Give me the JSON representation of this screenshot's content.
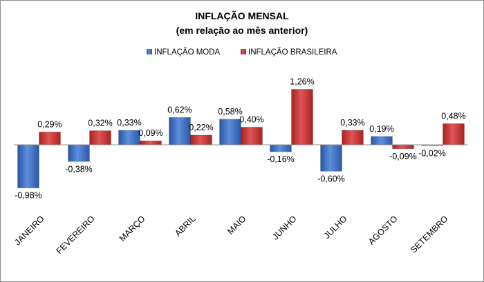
{
  "chart_data": {
    "type": "bar",
    "title": "INFLAÇÃO MENSAL",
    "subtitle": "(em relação ao mês anterior)",
    "legend_position": "top",
    "grid": false,
    "categories": [
      "JANEIRO",
      "FEVEREIRO",
      "MARÇO",
      "ABRIL",
      "MAIO",
      "JUNHO",
      "JULHO",
      "AGOSTO",
      "SETEMBRO"
    ],
    "ylim": [
      -1.2,
      1.5
    ],
    "series": [
      {
        "name": "INFLAÇÃO MODA",
        "color": "#3d6fc2",
        "values": [
          -0.98,
          -0.38,
          0.33,
          0.62,
          0.58,
          -0.16,
          -0.6,
          0.19,
          -0.02
        ],
        "labels": [
          "-0,98%",
          "-0,38%",
          "0,33%",
          "0,62%",
          "0,58%",
          "-0,16%",
          "-0,60%",
          "0,19%",
          "-0,02%"
        ]
      },
      {
        "name": "INFLAÇÃO BRASILEIRA",
        "color": "#c42e2e",
        "values": [
          0.29,
          0.32,
          0.09,
          0.22,
          0.4,
          1.26,
          0.33,
          -0.09,
          0.48
        ],
        "labels": [
          "0,29%",
          "0,32%",
          "0,09%",
          "0,22%",
          "0,40%",
          "1,26%",
          "0,33%",
          "-0,09%",
          "0,48%"
        ]
      }
    ]
  }
}
